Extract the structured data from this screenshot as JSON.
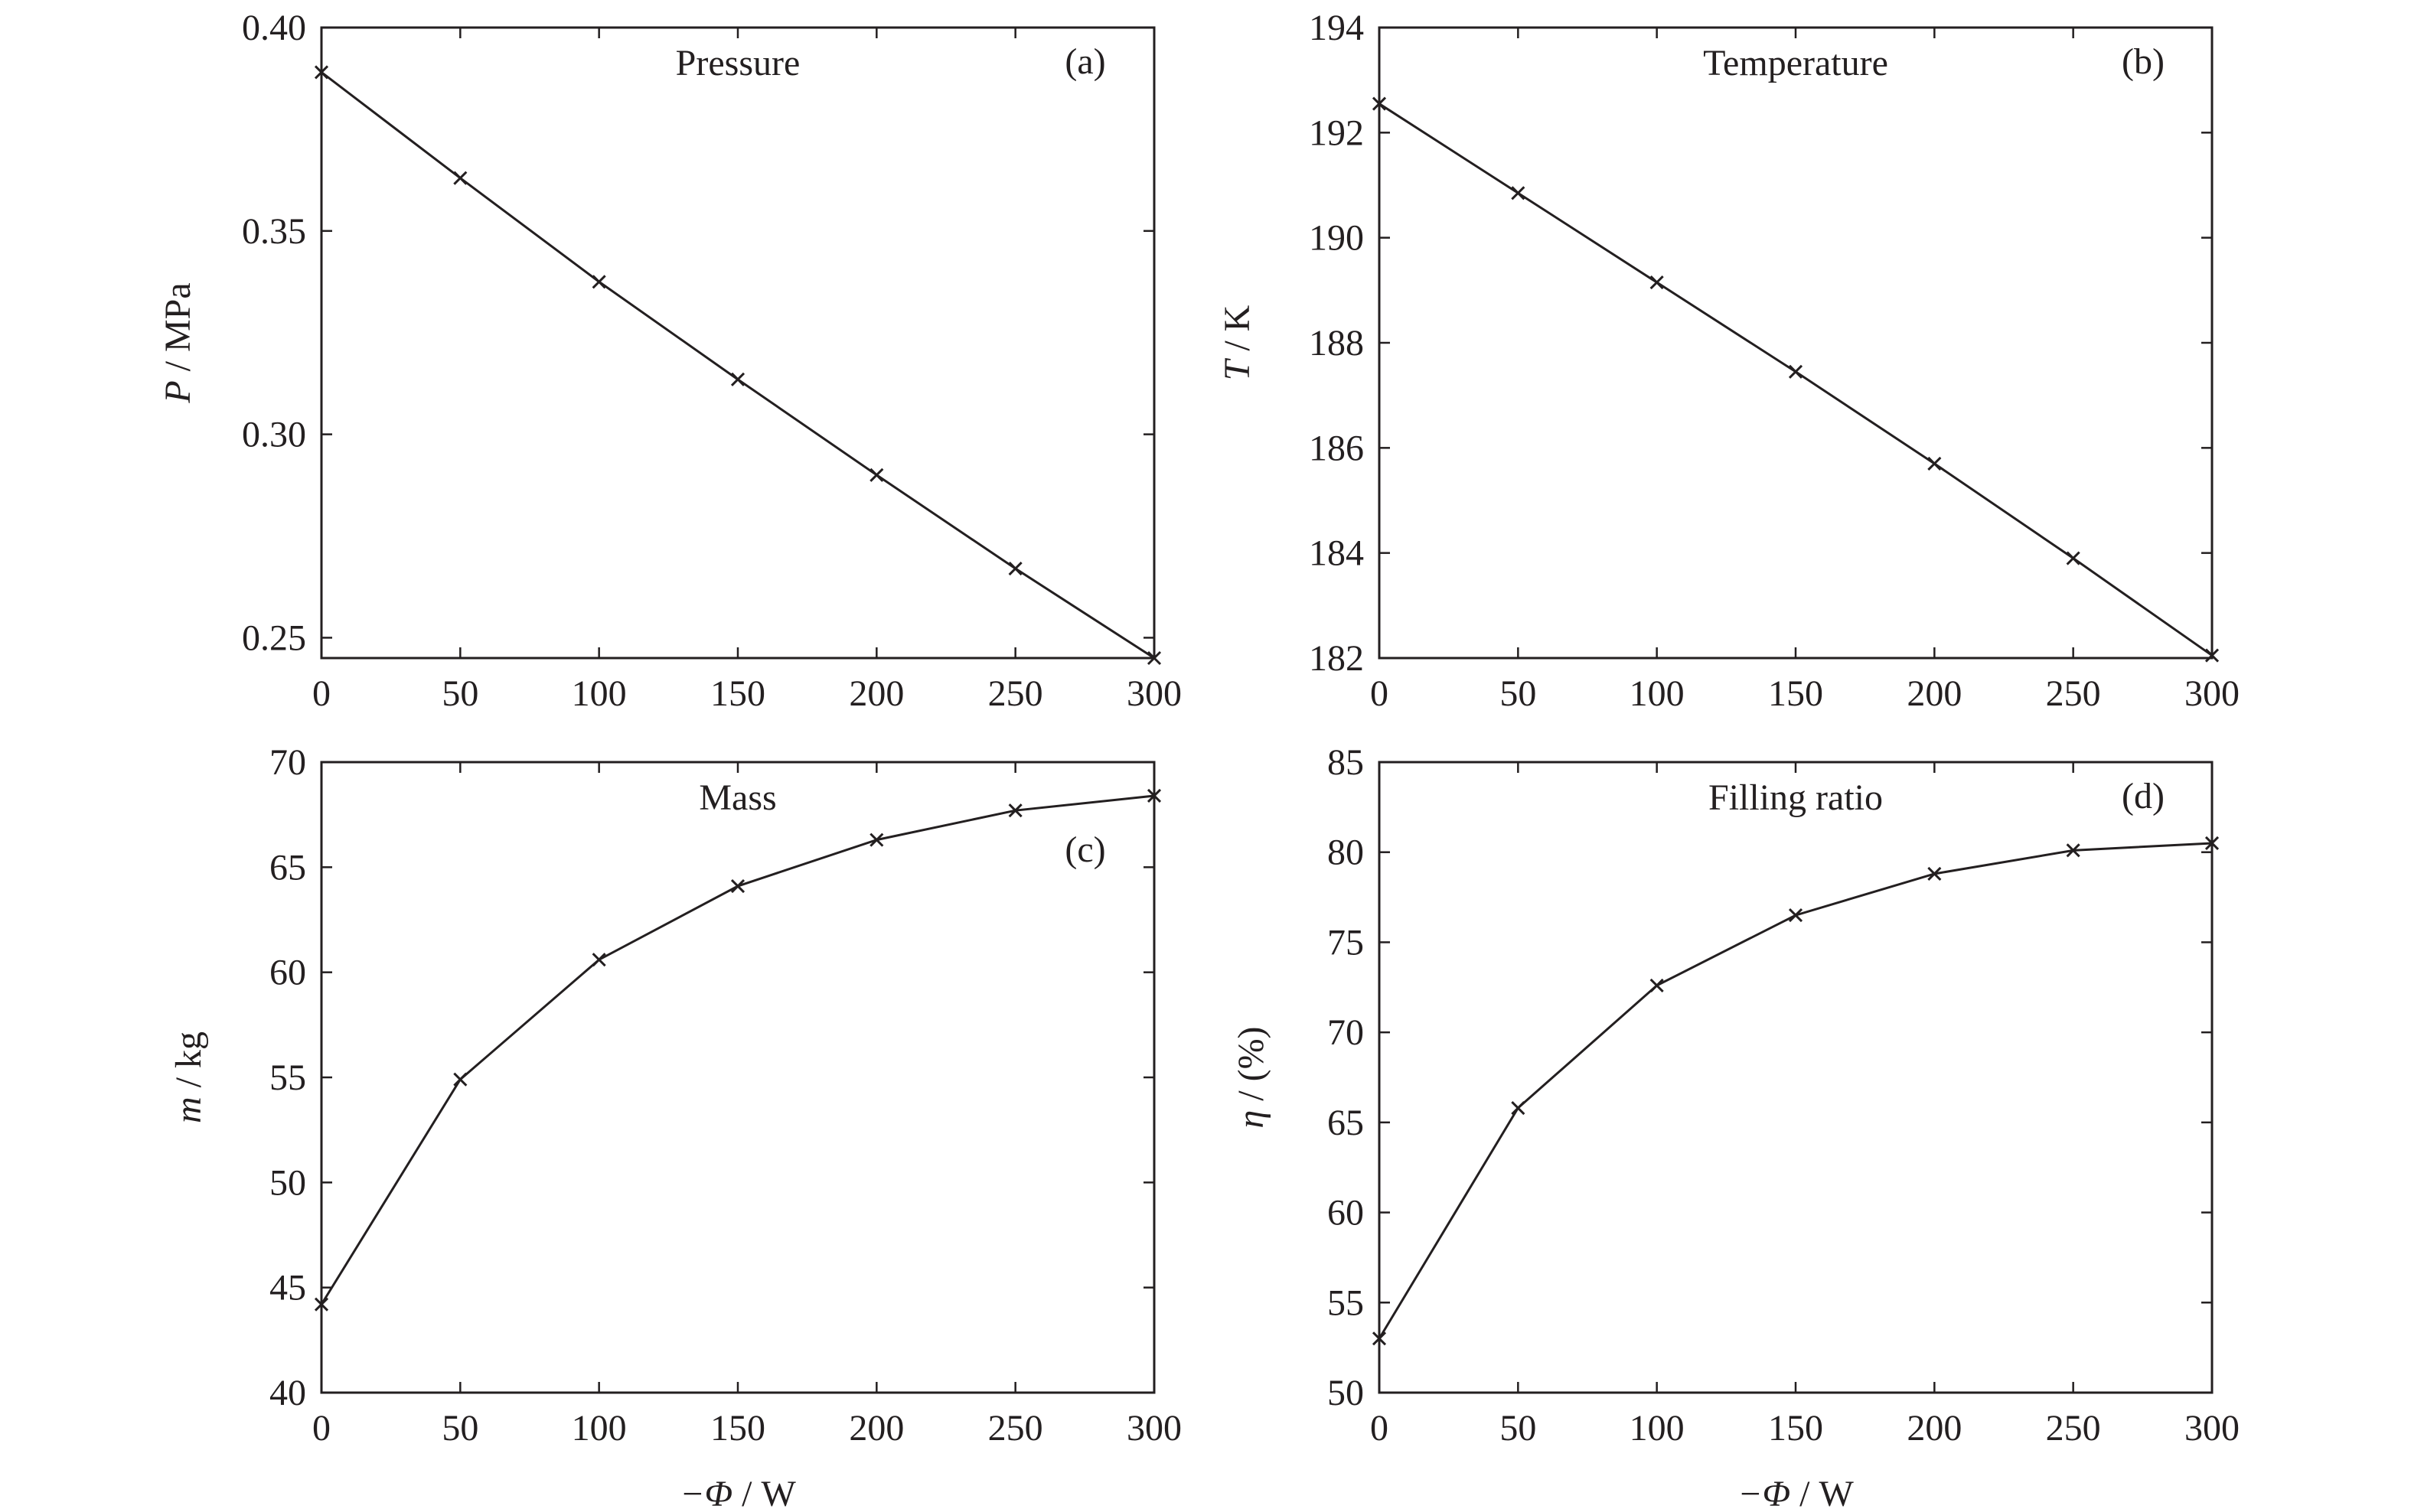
{
  "chart_data": [
    {
      "type": "line",
      "title": "Pressure",
      "tag": "(a)",
      "xlabel": "",
      "ylabel": {
        "symbol": "P",
        "unit": " / MPa"
      },
      "x": [
        0,
        50,
        100,
        150,
        200,
        250,
        300
      ],
      "xlim": [
        0,
        300
      ],
      "xticks": [
        0,
        50,
        100,
        150,
        200,
        250,
        300
      ],
      "xtick_labels": [
        "0",
        "50",
        "100",
        "150",
        "200",
        "250",
        "300"
      ],
      "ylim": [
        0.245,
        0.4
      ],
      "yticks": [
        0.25,
        0.3,
        0.35,
        0.4
      ],
      "ytick_labels": [
        "0.25",
        "0.30",
        "0.35",
        "0.40"
      ],
      "series": [
        {
          "values": [
            0.389,
            0.363,
            0.3375,
            0.3135,
            0.29,
            0.267,
            0.245
          ],
          "marker": "x"
        }
      ],
      "grid": false
    },
    {
      "type": "line",
      "title": "Temperature",
      "tag": "(b)",
      "xlabel": "",
      "ylabel": {
        "symbol": "T",
        "unit": " / K"
      },
      "x": [
        0,
        50,
        100,
        150,
        200,
        250,
        300
      ],
      "xlim": [
        0,
        300
      ],
      "xticks": [
        0,
        50,
        100,
        150,
        200,
        250,
        300
      ],
      "xtick_labels": [
        "0",
        "50",
        "100",
        "150",
        "200",
        "250",
        "300"
      ],
      "ylim": [
        182,
        194
      ],
      "yticks": [
        182,
        184,
        186,
        188,
        190,
        192,
        194
      ],
      "ytick_labels": [
        "182",
        "184",
        "186",
        "188",
        "190",
        "192",
        "194"
      ],
      "series": [
        {
          "values": [
            192.55,
            190.85,
            189.15,
            187.45,
            185.7,
            183.9,
            182.05
          ],
          "marker": "x"
        }
      ],
      "grid": false
    },
    {
      "type": "line",
      "title": "Mass",
      "tag": "(c)",
      "xlabel": {
        "symbol": "−Φ",
        "unit": " / W"
      },
      "ylabel": {
        "symbol": "m",
        "unit": " / kg"
      },
      "x": [
        0,
        50,
        100,
        150,
        200,
        250,
        300
      ],
      "xlim": [
        0,
        300
      ],
      "xticks": [
        0,
        50,
        100,
        150,
        200,
        250,
        300
      ],
      "xtick_labels": [
        "0",
        "50",
        "100",
        "150",
        "200",
        "250",
        "300"
      ],
      "ylim": [
        40,
        70
      ],
      "yticks": [
        40,
        45,
        50,
        55,
        60,
        65,
        70
      ],
      "ytick_labels": [
        "40",
        "45",
        "50",
        "55",
        "60",
        "65",
        "70"
      ],
      "series": [
        {
          "values": [
            44.2,
            54.9,
            60.6,
            64.1,
            66.3,
            67.7,
            68.4
          ],
          "marker": "x"
        }
      ],
      "grid": false
    },
    {
      "type": "line",
      "title": "Filling ratio",
      "tag": "(d)",
      "xlabel": {
        "symbol": "−Φ",
        "unit": " / W"
      },
      "ylabel": {
        "symbol": "η",
        "unit": " / (%)"
      },
      "x": [
        0,
        50,
        100,
        150,
        200,
        250,
        300
      ],
      "xlim": [
        0,
        300
      ],
      "xticks": [
        0,
        50,
        100,
        150,
        200,
        250,
        300
      ],
      "xtick_labels": [
        "0",
        "50",
        "100",
        "150",
        "200",
        "250",
        "300"
      ],
      "ylim": [
        50,
        85
      ],
      "yticks": [
        50,
        55,
        60,
        65,
        70,
        75,
        80,
        85
      ],
      "ytick_labels": [
        "50",
        "55",
        "60",
        "65",
        "70",
        "75",
        "80",
        "85"
      ],
      "series": [
        {
          "values": [
            53.0,
            65.8,
            72.6,
            76.5,
            78.8,
            80.1,
            80.5
          ],
          "marker": "x"
        }
      ],
      "grid": false
    }
  ]
}
